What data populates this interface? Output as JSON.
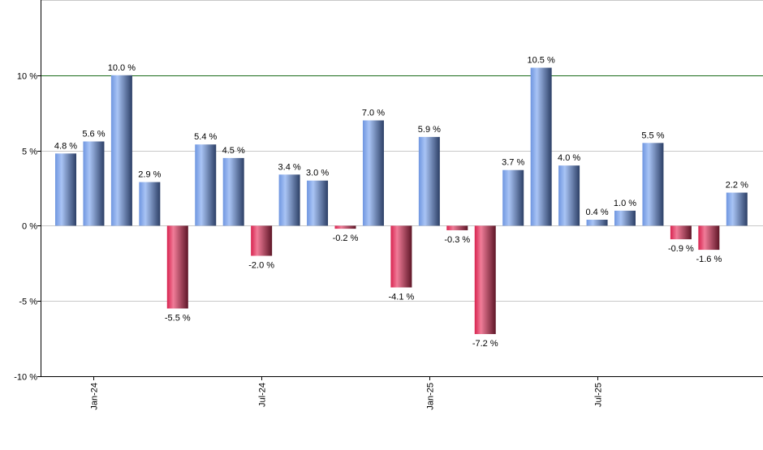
{
  "chart_data": {
    "type": "bar",
    "categories": [
      "Dec-23",
      "Jan-24",
      "Feb-24",
      "Mar-24",
      "Apr-24",
      "May-24",
      "Jun-24",
      "Jul-24",
      "Aug-24",
      "Sep-24",
      "Oct-24",
      "Nov-24",
      "Dec-24",
      "Jan-25",
      "Feb-25",
      "Mar-25",
      "Apr-25",
      "May-25",
      "Jun-25",
      "Jul-25",
      "Aug-25",
      "Sep-25",
      "Oct-25",
      "Nov-25",
      "Dec-25"
    ],
    "values": [
      4.8,
      5.6,
      10.0,
      2.9,
      -5.5,
      5.4,
      4.5,
      -2.0,
      3.4,
      3.0,
      -0.2,
      7.0,
      -4.1,
      5.9,
      -0.3,
      -7.2,
      3.7,
      10.5,
      4.0,
      0.4,
      1.0,
      5.5,
      -0.9,
      -1.6,
      2.2
    ],
    "data_labels": [
      "4.8 %",
      "5.6 %",
      "10.0 %",
      "2.9 %",
      "-5.5 %",
      "5.4 %",
      "4.5 %",
      "-2.0 %",
      "3.4 %",
      "3.0 %",
      "-0.2 %",
      "7.0 %",
      "-4.1 %",
      "5.9 %",
      "-0.3 %",
      "-7.2 %",
      "3.7 %",
      "10.5 %",
      "4.0 %",
      "0.4 %",
      "1.0 %",
      "5.5 %",
      "-0.9 %",
      "-1.6 %",
      "2.2 %"
    ],
    "x_tick_labels": [
      {
        "category": "Jan-24",
        "label": "Jan-24"
      },
      {
        "category": "Jul-24",
        "label": "Jul-24"
      },
      {
        "category": "Jan-25",
        "label": "Jan-25"
      },
      {
        "category": "Jul-25",
        "label": "Jul-25"
      }
    ],
    "y_ticks": [
      10,
      5,
      0,
      -5,
      -10
    ],
    "y_tick_labels": [
      "10 %",
      "5 %",
      "0 %",
      "-5 %",
      "-10 %"
    ],
    "ylim": [
      -10,
      15
    ],
    "grid": true,
    "reference_line": 10,
    "title": "",
    "xlabel": "",
    "ylabel": "",
    "colors": {
      "positive_light": "#a9c4f5",
      "positive": "#6f96e0",
      "positive_dark": "#2c3f66",
      "negative_light": "#f07c98",
      "negative": "#d8234f",
      "negative_dark": "#5e1627",
      "reference": "#1a6b1a",
      "grid": "#c8c8c8"
    }
  }
}
